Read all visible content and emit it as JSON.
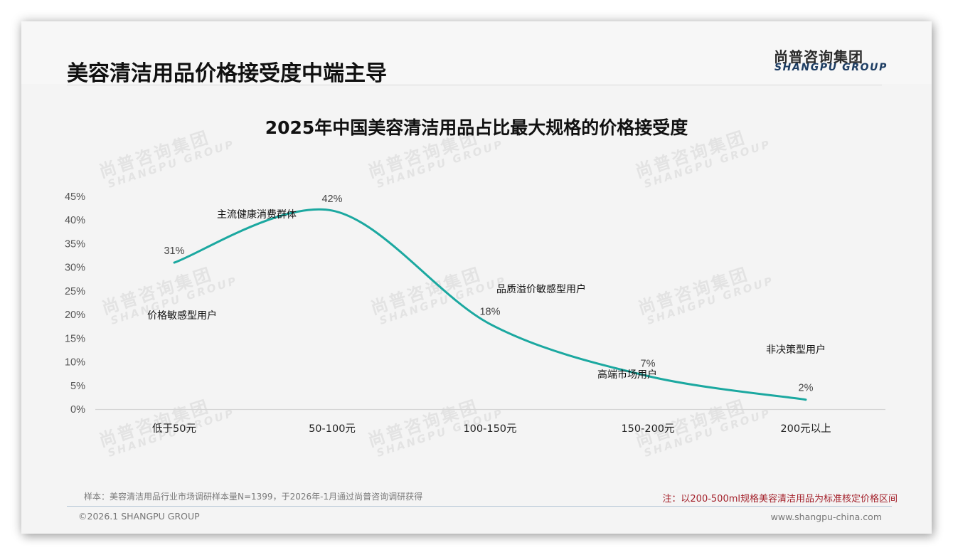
{
  "header": {
    "title": "美容清洁用品价格接受度中端主导",
    "logo_cn": "尚普咨询集团",
    "logo_en": "SHANGPU GROUP"
  },
  "watermark": {
    "cn": "尚普咨询集团",
    "en": "SHANGPU GROUP"
  },
  "chart_data": {
    "type": "line",
    "title": "2025年中国美容清洁用品占比最大规格的价格接受度",
    "xlabel": "",
    "ylabel": "",
    "categories": [
      "低于50元",
      "50-100元",
      "100-150元",
      "150-200元",
      "200元以上"
    ],
    "values": [
      31,
      42,
      18,
      7,
      2
    ],
    "value_labels": [
      "31%",
      "42%",
      "18%",
      "7%",
      "2%"
    ],
    "annotations": [
      "价格敏感型用户",
      "主流健康消费群体",
      "品质溢价敏感型用户",
      "高端市场用户",
      "非决策型用户"
    ],
    "ylim": [
      0,
      45
    ],
    "yticks": [
      "0%",
      "5%",
      "10%",
      "15%",
      "20%",
      "25%",
      "30%",
      "35%",
      "40%",
      "45%"
    ],
    "grid": false,
    "legend": "none",
    "line_color": "#1ba8a0",
    "smooth": true
  },
  "footer": {
    "sample_note": "样本：美容清洁用品行业市场调研样本量N=1399，于2026年-1月通过尚普咨询调研获得",
    "red_note": "注：以200-500ml规格美容清洁用品为标准核定价格区间",
    "copyright": "©2026.1 SHANGPU GROUP",
    "website": "www.shangpu-china.com"
  }
}
